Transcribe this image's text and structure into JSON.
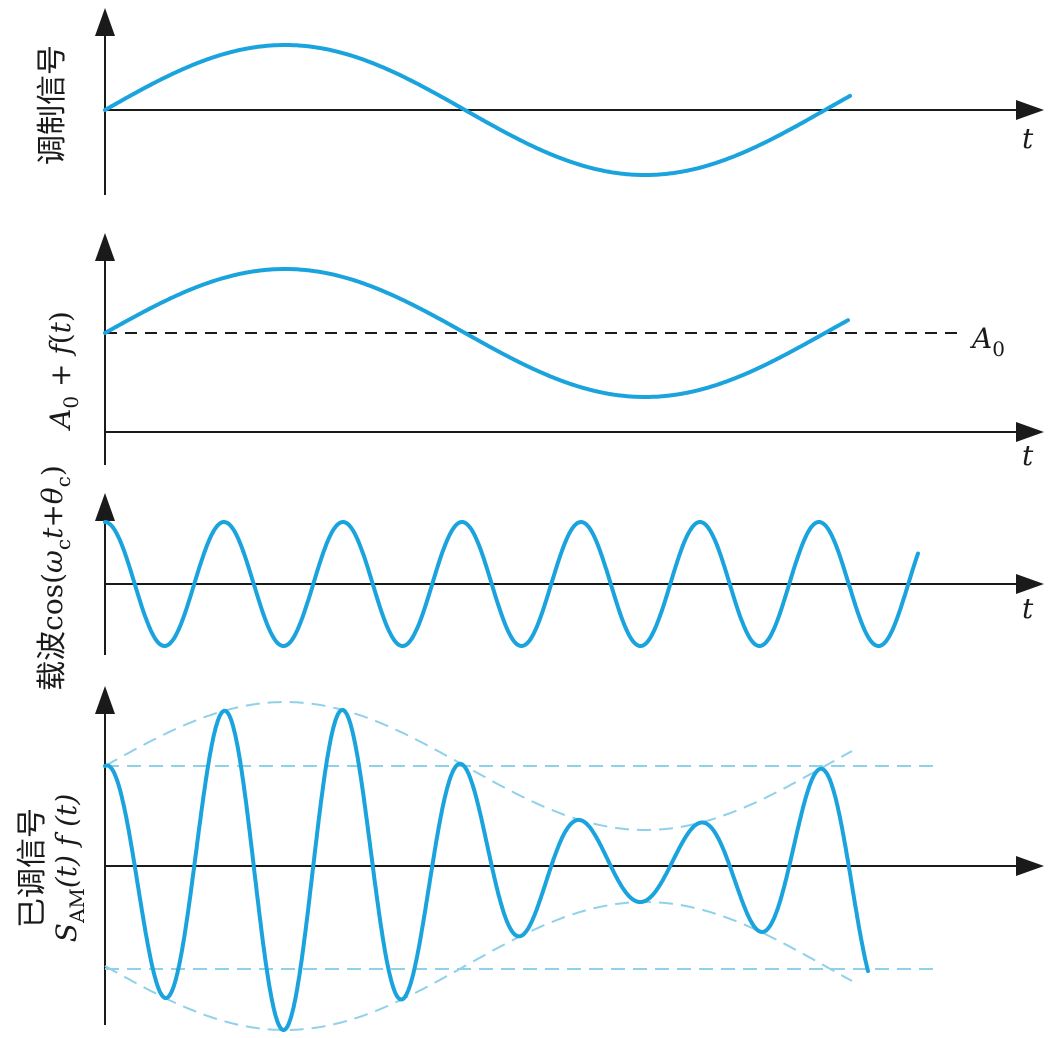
{
  "panels": [
    {
      "id": "modulating-signal",
      "ylabel": "调制信号",
      "xlabel": "t"
    },
    {
      "id": "dc-plus-signal",
      "ylabel_parts": [
        "A",
        "0",
        " + ",
        "f",
        "(",
        "t",
        ")"
      ],
      "xlabel": "t",
      "reference_label_main": "A",
      "reference_label_sub": "0"
    },
    {
      "id": "carrier",
      "ylabel_prefix": "载波",
      "ylabel_func": "cos(",
      "ylabel_omega": "ω",
      "ylabel_c1": "c",
      "ylabel_t": "t",
      "ylabel_plus": "+",
      "ylabel_theta": "θ",
      "ylabel_c2": "c",
      "ylabel_close": ")",
      "xlabel": "t"
    },
    {
      "id": "modulated-signal",
      "ylabel_line1": "已调信号",
      "ylabel_s": "S",
      "ylabel_sub": "AM",
      "ylabel_rest": "(t) f (t)"
    }
  ],
  "colors": {
    "wave": "#1aa3dc",
    "envelope": "#8fd0ea",
    "axis": "#1a1a1a"
  },
  "chart_data": {
    "type": "line",
    "signals": [
      {
        "role": "modulating",
        "form": "sine",
        "cycles": 1.08
      },
      {
        "role": "dc_plus_modulating",
        "form": "sine_offset",
        "cycles": 1.08
      },
      {
        "role": "carrier",
        "form": "cosine",
        "cycles": 6.9
      },
      {
        "role": "am_signal",
        "form": "am",
        "carrier_cycles": 6.9,
        "envelope_cycles": 1.08
      }
    ]
  }
}
